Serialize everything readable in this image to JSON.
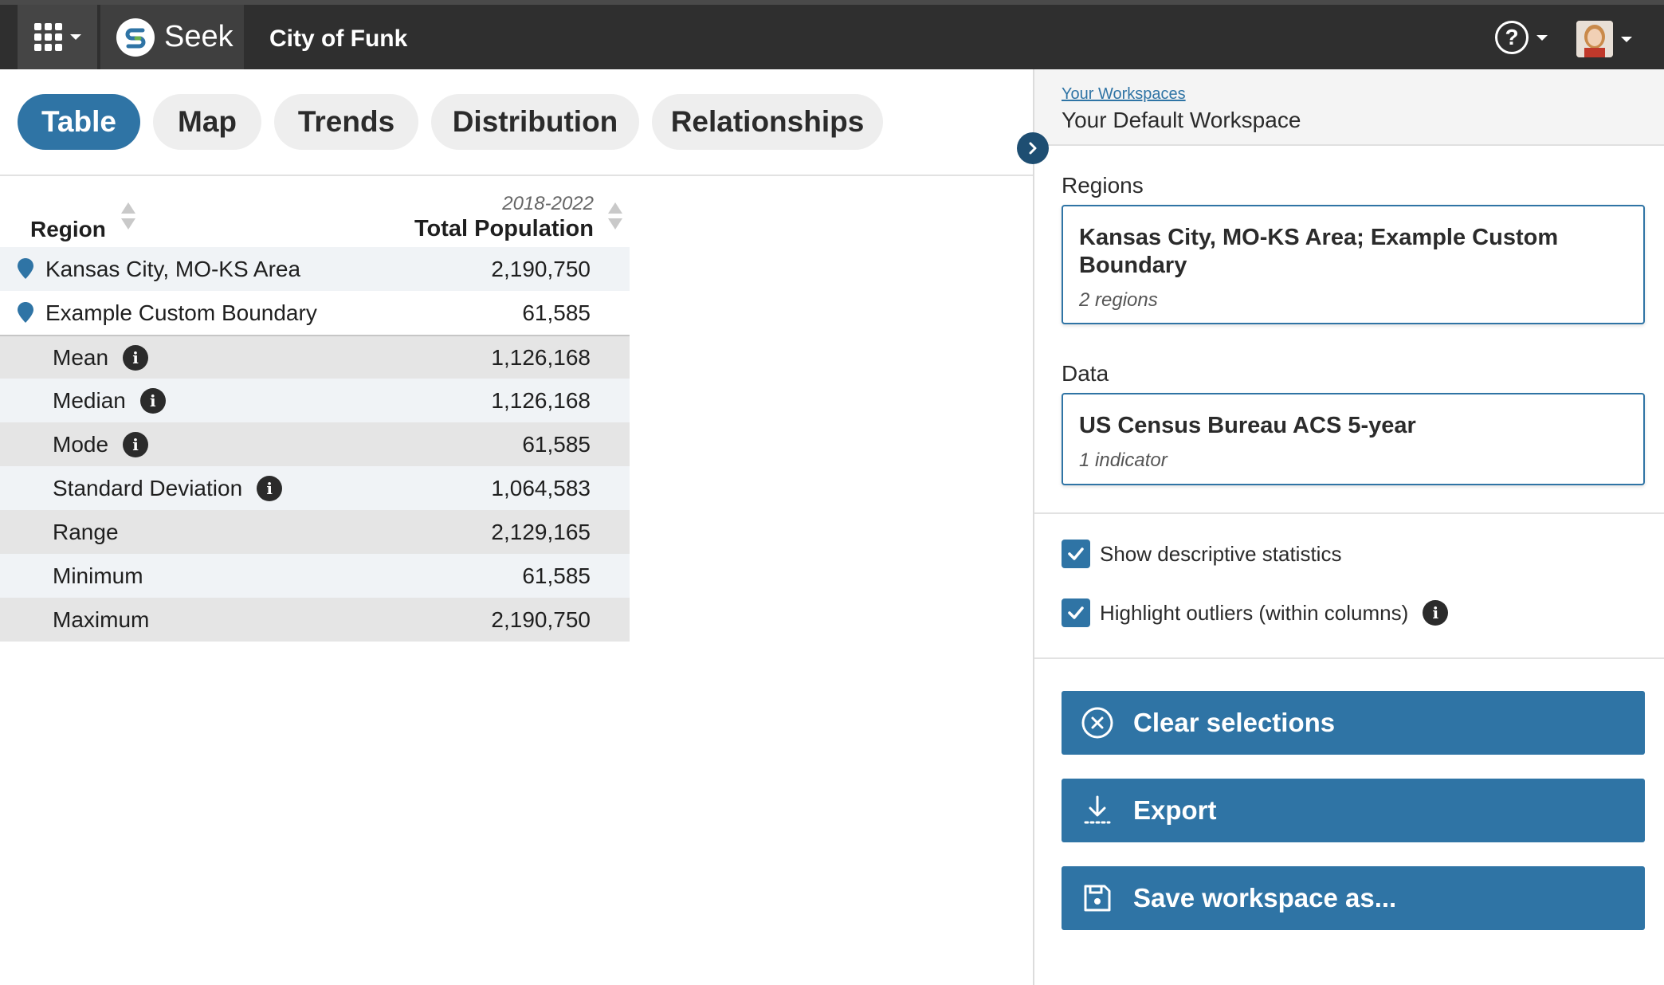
{
  "topbar": {
    "brand_name": "Seek",
    "city_name": "City of Funk",
    "help_symbol": "?"
  },
  "tabs": [
    {
      "label": "Table",
      "active": true
    },
    {
      "label": "Map",
      "active": false
    },
    {
      "label": "Trends",
      "active": false
    },
    {
      "label": "Distribution",
      "active": false
    },
    {
      "label": "Relationships",
      "active": false
    }
  ],
  "table": {
    "col_region": "Region",
    "col_year": "2018-2022",
    "col_value": "Total Population",
    "regions": [
      {
        "name": "Kansas City, MO-KS Area",
        "value": "2,190,750"
      },
      {
        "name": "Example Custom Boundary",
        "value": "61,585"
      }
    ],
    "stats": [
      {
        "name": "Mean",
        "value": "1,126,168",
        "info": true
      },
      {
        "name": "Median",
        "value": "1,126,168",
        "info": true
      },
      {
        "name": "Mode",
        "value": "61,585",
        "info": true
      },
      {
        "name": "Standard Deviation",
        "value": "1,064,583",
        "info": true
      },
      {
        "name": "Range",
        "value": "2,129,165",
        "info": false
      },
      {
        "name": "Minimum",
        "value": "61,585",
        "info": false
      },
      {
        "name": "Maximum",
        "value": "2,190,750",
        "info": false
      }
    ],
    "info_symbol": "i"
  },
  "panel": {
    "workspaces_link": "Your Workspaces",
    "workspace_name": "Your Default Workspace",
    "regions_label": "Regions",
    "regions_card_title": "Kansas City, MO-KS Area; Example Custom Boundary",
    "regions_card_sub": "2 regions",
    "data_label": "Data",
    "data_card_title": "US Census Bureau ACS 5-year",
    "data_card_sub": "1 indicator",
    "show_stats_label": "Show descriptive statistics",
    "show_stats_checked": true,
    "highlight_label": "Highlight outliers (within columns)",
    "highlight_checked": true,
    "clear_label": "Clear selections",
    "export_label": "Export",
    "save_label": "Save workspace as..."
  },
  "colors": {
    "accent": "#2f74a5",
    "topbar": "#2f2f2f",
    "pin": "#2f74a5"
  }
}
